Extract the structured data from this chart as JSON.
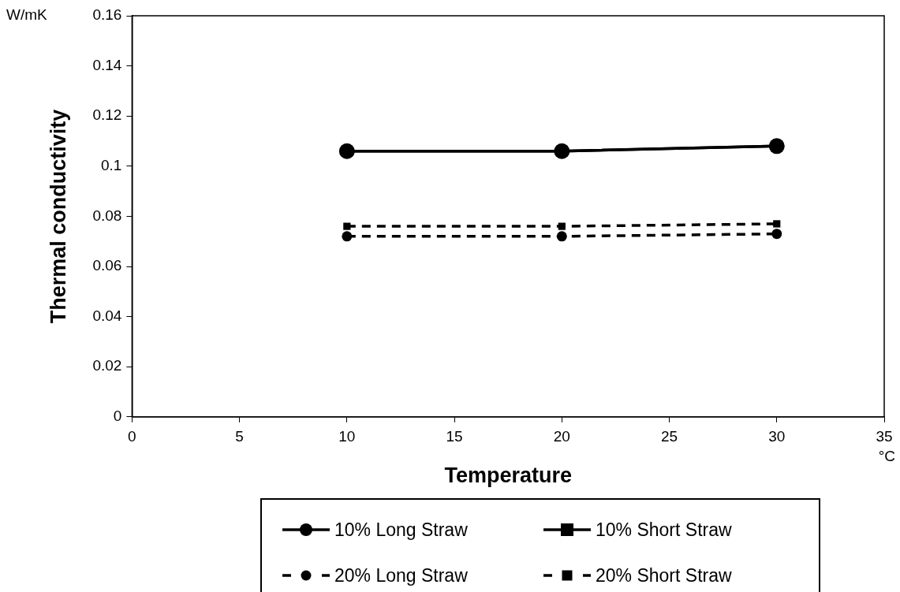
{
  "chart_data": {
    "type": "line",
    "xlabel": "Temperature",
    "ylabel": "Thermal conductivity",
    "annotations": [
      "W/mK",
      "°C"
    ],
    "x": [
      10,
      20,
      30
    ],
    "xlim": [
      0,
      35
    ],
    "xticks": [
      0,
      5,
      10,
      15,
      20,
      25,
      30,
      35
    ],
    "ylim": [
      0,
      0.16
    ],
    "yticks": [
      0,
      0.02,
      0.04,
      0.06,
      0.08,
      0.1,
      0.12,
      0.14,
      0.16
    ],
    "grid": false,
    "legend": "bottom",
    "series": [
      {
        "name": "10% Long Straw",
        "color": "#000000",
        "values": [
          0.106,
          0.106,
          0.108
        ],
        "marker": "circle",
        "line_style": "solid"
      },
      {
        "name": "10% Short Straw",
        "color": "#000000",
        "values": [
          0.106,
          0.106,
          0.108
        ],
        "marker": "square",
        "line_style": "solid"
      },
      {
        "name": "20% Long Straw",
        "color": "#000000",
        "values": [
          0.072,
          0.072,
          0.073
        ],
        "marker": "circle",
        "line_style": "dashed"
      },
      {
        "name": "20% Short Straw",
        "color": "#000000",
        "values": [
          0.076,
          0.076,
          0.077
        ],
        "marker": "square",
        "line_style": "dashed"
      }
    ]
  }
}
